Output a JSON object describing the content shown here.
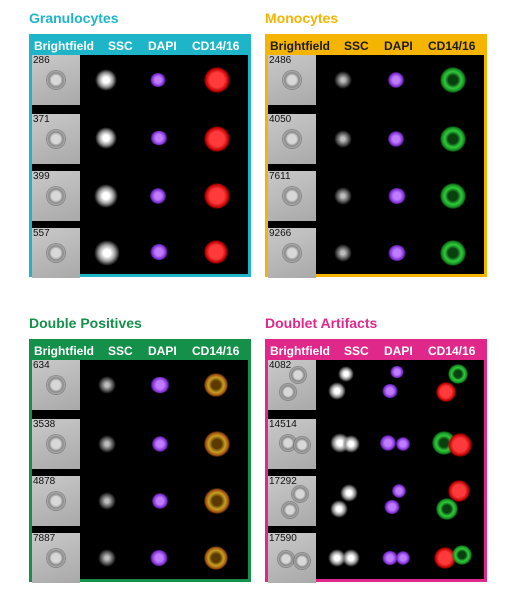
{
  "channels": [
    "Brightfield",
    "SSC",
    "DAPI",
    "CD14/16"
  ],
  "panels": [
    {
      "title": "Granulocytes",
      "color": "#1fb5c9",
      "events": [
        "286",
        "371",
        "399",
        "557"
      ]
    },
    {
      "title": "Monocytes",
      "color": "#f5b400",
      "events": [
        "2486",
        "4050",
        "7611",
        "9266"
      ]
    },
    {
      "title": "Double Positives",
      "color": "#15904a",
      "events": [
        "634",
        "3538",
        "4878",
        "7887"
      ]
    },
    {
      "title": "Doublet Artifacts",
      "color": "#e0288a",
      "events": [
        "4082",
        "14514",
        "17292",
        "17590"
      ]
    }
  ]
}
